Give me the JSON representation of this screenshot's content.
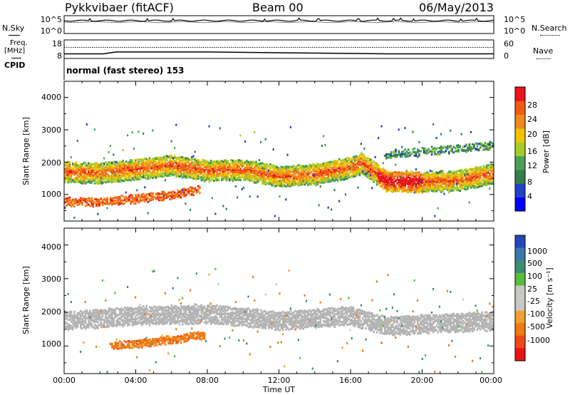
{
  "header": {
    "station": "Pykkvibaer (fitACF)",
    "beam": "Beam 00",
    "date": "06/May/2013"
  },
  "top_panels": {
    "nsky": {
      "label": "N.Sky",
      "ticks": [
        "10^5",
        "10^0"
      ]
    },
    "nsearch": {
      "label": "N.Search",
      "ticks": [
        "10^5",
        "10^0"
      ]
    },
    "freq": {
      "label_line1": "Freq.",
      "label_line2": "[MHz]",
      "ticks": [
        "18",
        "8"
      ]
    },
    "nave": {
      "label": "Nave",
      "ticks": [
        "60",
        "0"
      ]
    },
    "cpid": {
      "label": "CPID",
      "value": "normal (fast stereo) 153"
    }
  },
  "power_panel": {
    "ylabel": "Slant Range [km]",
    "yticks": [
      "4000",
      "3000",
      "2000",
      "1000"
    ],
    "colorbar_label": "Power [dB]",
    "colorbar_ticks": [
      "28",
      "24",
      "20",
      "16",
      "12",
      "8",
      "4"
    ],
    "colors": [
      "#0000ff",
      "#2142c8",
      "#347f4c",
      "#4ca154",
      "#a6cc2b",
      "#f2c400",
      "#f08a1e",
      "#f05a14",
      "#e8141a"
    ]
  },
  "velocity_panel": {
    "ylabel": "Slant Range [km]",
    "yticks": [
      "4000",
      "3000",
      "2000",
      "1000"
    ],
    "colorbar_label": "Velocity [m s⁻¹]",
    "colorbar_ticks": [
      "1000",
      "500",
      "100",
      "25",
      "-25",
      "-100",
      "-500",
      "-1000"
    ],
    "colors": [
      "#2448b8",
      "#3a78aa",
      "#3c8c74",
      "#58bc3c",
      "#c8c8c4",
      "#c8c8c4",
      "#f0a030",
      "#f07a14",
      "#f04818",
      "#e81414"
    ],
    "ground_scatter_color": "#b4b4b4"
  },
  "x_axis": {
    "label": "Time UT",
    "ticks": [
      "00:00",
      "04:00",
      "08:00",
      "12:00",
      "16:00",
      "20:00",
      "00:00"
    ]
  },
  "chart_data": [
    {
      "type": "line",
      "panel": "N.Sky / N.Search",
      "x_range_hours": [
        0,
        24
      ],
      "y_scale": "log",
      "ylim": [
        1,
        100000
      ]
    },
    {
      "type": "line",
      "panel": "Freq. / Nave",
      "x_range_hours": [
        0,
        24
      ],
      "series": [
        {
          "name": "Freq.",
          "x": [
            0,
            2.2,
            2.9,
            8,
            18,
            24
          ],
          "y": [
            10.5,
            10.5,
            11.5,
            11.5,
            10.5,
            10.5
          ]
        },
        {
          "name": "Nave",
          "x": [
            0,
            8,
            8,
            18,
            18,
            24
          ],
          "y": [
            36,
            36,
            36,
            36,
            36,
            36
          ]
        }
      ],
      "ylim": [
        8,
        18
      ]
    },
    {
      "type": "heatmap",
      "panel": "Power [dB]",
      "x_range_hours": [
        0,
        24
      ],
      "ylim": [
        180,
        4500
      ],
      "clim": [
        0,
        30
      ],
      "bands": [
        {
          "name": "main echo band",
          "x": [
            0,
            2,
            4,
            6,
            8,
            10,
            12,
            14,
            16,
            16.6,
            18,
            20,
            22,
            24
          ],
          "y": [
            1750,
            1700,
            1830,
            1950,
            1780,
            1820,
            1600,
            1680,
            1880,
            2020,
            1450,
            1430,
            1480,
            1700
          ],
          "value": 18
        },
        {
          "name": "near-range band",
          "x": [
            0,
            2,
            4,
            6,
            7.5
          ],
          "y": [
            830,
            820,
            930,
            1040,
            1200
          ],
          "value": 24
        },
        {
          "name": "upper band",
          "x": [
            18,
            20,
            22,
            24
          ],
          "y": [
            2250,
            2350,
            2450,
            2550
          ],
          "value": 10
        }
      ]
    },
    {
      "type": "heatmap",
      "panel": "Velocity [m s-1]",
      "x_range_hours": [
        0,
        24
      ],
      "ylim": [
        180,
        4500
      ],
      "clim": [
        -1000,
        1000
      ],
      "bands": [
        {
          "name": "ground scatter",
          "x": [
            0,
            4,
            8,
            12,
            16,
            18,
            20,
            24
          ],
          "y": [
            1800,
            1950,
            2000,
            1800,
            1950,
            1650,
            1700,
            1800
          ],
          "value": 0
        },
        {
          "name": "negative velocity patch",
          "x": [
            3,
            5,
            6.5,
            7.5
          ],
          "y": [
            1050,
            1150,
            1250,
            1350
          ],
          "value": -300
        }
      ]
    }
  ]
}
